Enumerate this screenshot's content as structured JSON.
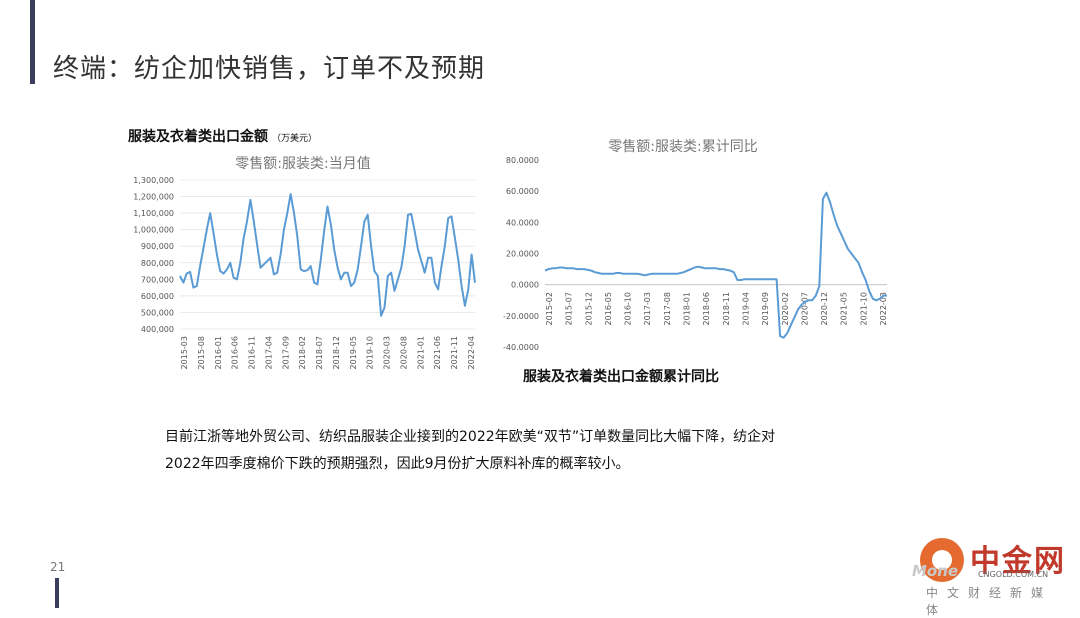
{
  "slide": {
    "title": "终端：纺企加快销售，订单不及预期",
    "page_number": "21",
    "body_lines": [
      "目前江浙等地外贸公司、纺织品服装企业接到的2022年欧美“双节”订单数量同比大幅下降，纺企对",
      "2022年四季度棉价下跌的预期强烈，因此9月份扩大原料补库的概率较小。"
    ],
    "left_caption": "服装及衣着类出口金额",
    "left_caption_unit": "（万美元）",
    "right_caption": "服装及衣着类出口金额累计同比"
  },
  "watermark": {
    "brand": "中金网",
    "sub": "Mone",
    "url": "CNGOLD.COM.CN",
    "tag": "中文财经新媒体"
  },
  "colors": {
    "line": "#5b9bd5",
    "accent": "#3a3e5c",
    "grid": "#dddddd"
  },
  "chart_data": [
    {
      "type": "line",
      "title": "零售额:服装类:当月值",
      "ylim": [
        400000,
        1300000
      ],
      "y_ticks": [
        "1,300,000",
        "1,200,000",
        "1,100,000",
        "1,000,000",
        "900,000",
        "800,000",
        "700,000",
        "600,000",
        "500,000",
        "400,000"
      ],
      "x_ticks": [
        "2015-03",
        "2015-08",
        "2016-01",
        "2016-06",
        "2016-11",
        "2017-04",
        "2017-09",
        "2018-02",
        "2018-07",
        "2018-12",
        "2019-05",
        "2019-10",
        "2020-03",
        "2020-08",
        "2021-01",
        "2021-06",
        "2021-11",
        "2022-04"
      ],
      "series": [
        {
          "values": [
            720000,
            680000,
            735000,
            745000,
            650000,
            660000,
            780000,
            890000,
            1000000,
            1100000,
            980000,
            850000,
            750000,
            735000,
            760000,
            800000,
            710000,
            700000,
            800000,
            950000,
            1050000,
            1180000,
            1050000,
            910000,
            770000,
            790000,
            810000,
            830000,
            730000,
            740000,
            850000,
            1000000,
            1100000,
            1215000,
            1100000,
            960000,
            760000,
            750000,
            755000,
            780000,
            680000,
            670000,
            820000,
            990000,
            1140000,
            1030000,
            880000,
            770000,
            700000,
            740000,
            740000,
            660000,
            680000,
            760000,
            900000,
            1050000,
            1090000,
            900000,
            750000,
            720000,
            480000,
            530000,
            720000,
            740000,
            630000,
            700000,
            770000,
            900000,
            1090000,
            1095000,
            990000,
            880000,
            810000,
            740000,
            830000,
            830000,
            680000,
            640000,
            780000,
            900000,
            1070000,
            1080000,
            950000,
            820000,
            660000,
            540000,
            640000,
            850000,
            680000
          ]
        }
      ]
    },
    {
      "type": "line",
      "title": "零售额:服装类:累计同比",
      "ylim": [
        -40,
        80
      ],
      "y_ticks": [
        "80.0000",
        "60.0000",
        "40.0000",
        "20.0000",
        "0.0000",
        "-20.0000",
        "-40.0000"
      ],
      "x_ticks": [
        "2015-02",
        "2015-07",
        "2015-12",
        "2016-05",
        "2016-10",
        "2017-03",
        "2017-08",
        "2018-01",
        "2018-06",
        "2018-11",
        "2019-04",
        "2019-09",
        "2020-02",
        "2020-07",
        "2020-12",
        "2021-05",
        "2021-10",
        "2022-03"
      ],
      "series": [
        {
          "values": [
            9,
            10,
            10.5,
            10.5,
            11,
            11,
            10.5,
            10.5,
            10.5,
            10,
            10,
            10,
            9.5,
            9,
            8,
            7.5,
            7,
            7,
            7,
            7,
            7.5,
            7.5,
            7,
            7,
            7,
            7,
            7,
            6.5,
            6,
            6.5,
            7,
            7,
            7,
            7,
            7,
            7,
            7,
            7,
            7.5,
            8,
            9,
            10,
            11,
            11.5,
            11,
            10.5,
            10.5,
            10.5,
            10.5,
            10,
            10,
            9.5,
            9,
            8,
            3,
            3,
            3.5,
            3.5,
            3.5,
            3.5,
            3.5,
            3.5,
            3.5,
            3.5,
            3.5,
            3.5,
            -33,
            -34,
            -31,
            -26,
            -21,
            -16,
            -13,
            -11,
            -10,
            -10,
            -7,
            -1,
            55,
            59,
            53,
            45,
            38,
            33,
            28,
            23,
            20,
            17,
            14,
            8,
            3,
            -4,
            -9,
            -10,
            -9,
            -7,
            -7
          ]
        }
      ]
    }
  ]
}
